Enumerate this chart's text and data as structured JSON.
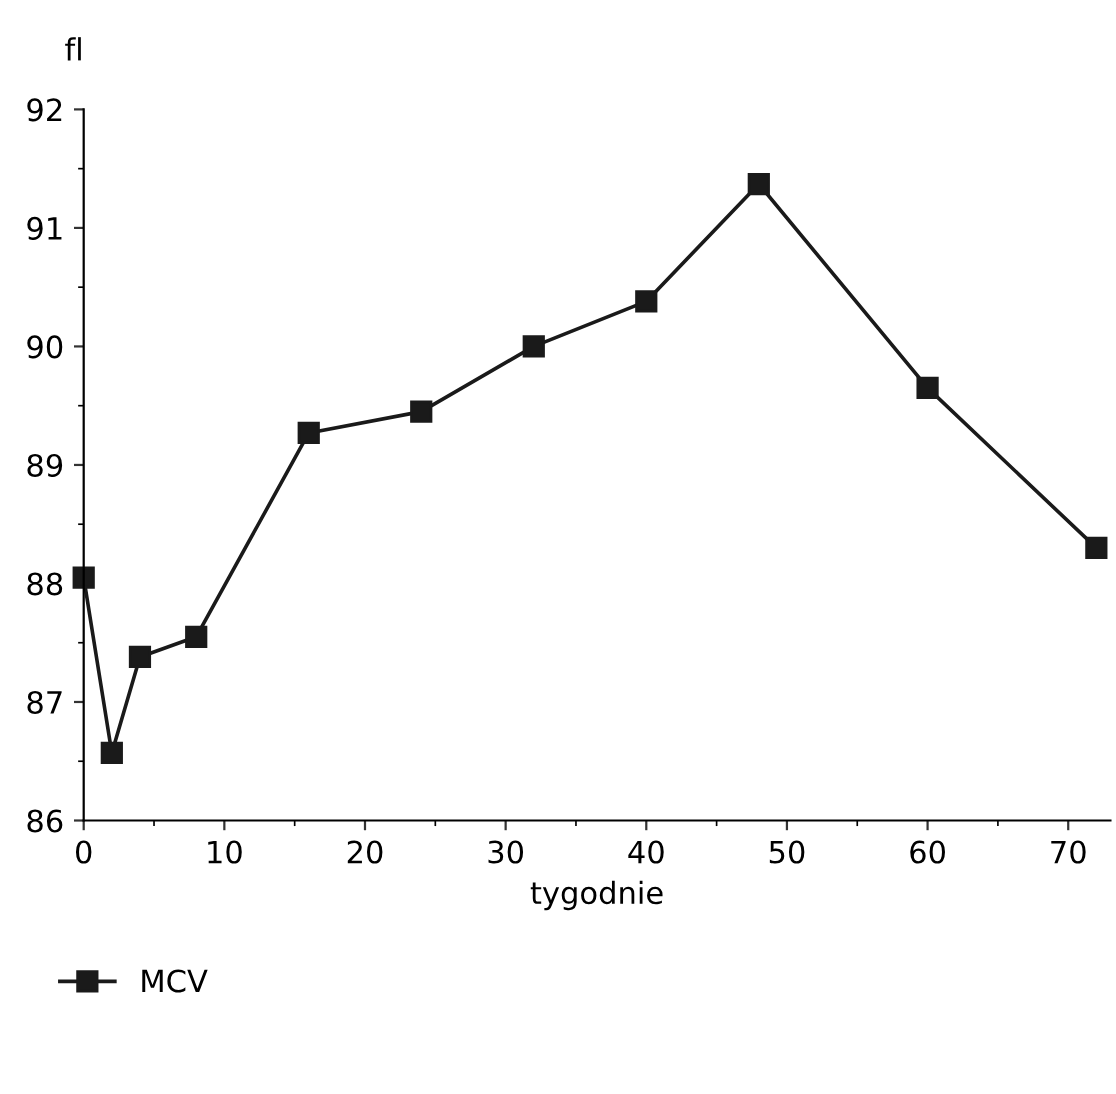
{
  "chart_data": {
    "type": "line",
    "xlabel": "tygodnie",
    "ylabel": "fl",
    "x": [
      0,
      2,
      4,
      8,
      16,
      24,
      32,
      40,
      48,
      60,
      72
    ],
    "series": [
      {
        "name": "MCV",
        "color": "#1a1a1a",
        "values": [
          88.05,
          86.57,
          87.38,
          87.55,
          89.27,
          89.45,
          90.0,
          90.38,
          91.37,
          89.65,
          88.3
        ]
      }
    ],
    "xlim": [
      0,
      73
    ],
    "xticks": [
      0,
      10,
      20,
      30,
      40,
      50,
      60,
      70
    ],
    "ylim": [
      86,
      92
    ],
    "yticks": [
      86,
      87,
      88,
      89,
      90,
      91,
      92
    ],
    "marker": "square",
    "line_style": "solid",
    "grid": false,
    "legend": "bottom left"
  }
}
